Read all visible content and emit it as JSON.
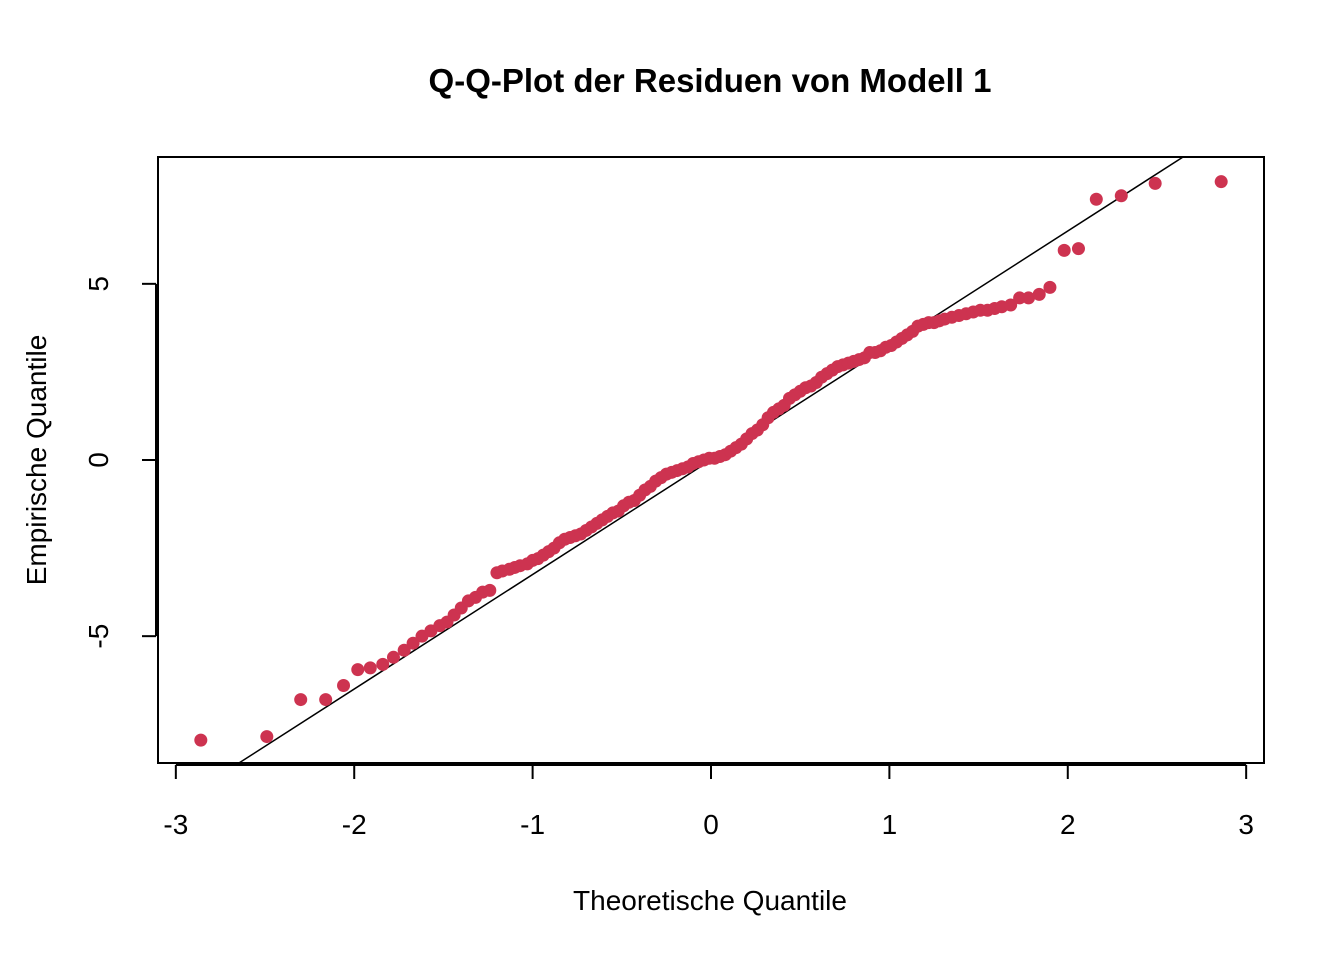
{
  "chart_data": {
    "type": "scatter",
    "title": "Q-Q-Plot der Residuen von Modell 1",
    "xlabel": "Theoretische Quantile",
    "ylabel": "Empirische Quantile",
    "xlim": [
      -3.1,
      3.1
    ],
    "ylim": [
      -8.6,
      8.6
    ],
    "x_ticks": [
      -3,
      -2,
      -1,
      0,
      1,
      2,
      3
    ],
    "x_tick_labels": [
      "-3",
      "-2",
      "-1",
      "0",
      "1",
      "2",
      "3"
    ],
    "y_ticks": [
      -5,
      0,
      5
    ],
    "y_tick_labels": [
      "-5",
      "0",
      "5"
    ],
    "grid": false,
    "point_color": "#cd3350",
    "line_color": "#000000",
    "reference_line": {
      "intercept": 0.0,
      "slope": 3.25
    },
    "series": [
      {
        "x": [
          -2.86,
          -2.49,
          -2.3,
          -2.16,
          -2.06,
          -1.98,
          -1.91,
          -1.84,
          -1.78,
          -1.72,
          -1.67,
          -1.62,
          -1.57,
          -1.52,
          -1.48,
          -1.44,
          -1.4,
          -1.36,
          -1.32,
          -1.28,
          -1.24,
          -1.2,
          -1.17,
          -1.13,
          -1.1,
          -1.07,
          -1.03,
          -1.0,
          -0.97,
          -0.94,
          -0.91,
          -0.88,
          -0.85,
          -0.82,
          -0.79,
          -0.76,
          -0.73,
          -0.7,
          -0.67,
          -0.64,
          -0.61,
          -0.58,
          -0.55,
          -0.52,
          -0.49,
          -0.46,
          -0.43,
          -0.4,
          -0.37,
          -0.34,
          -0.31,
          -0.28,
          -0.25,
          -0.22,
          -0.19,
          -0.16,
          -0.13,
          -0.1,
          -0.07,
          -0.04,
          -0.01,
          0.02,
          0.05,
          0.08,
          0.11,
          0.14,
          0.17,
          0.2,
          0.23,
          0.26,
          0.29,
          0.32,
          0.35,
          0.38,
          0.41,
          0.44,
          0.47,
          0.5,
          0.53,
          0.56,
          0.59,
          0.62,
          0.65,
          0.68,
          0.71,
          0.74,
          0.77,
          0.8,
          0.83,
          0.86,
          0.89,
          0.92,
          0.95,
          0.98,
          1.01,
          1.04,
          1.07,
          1.1,
          1.13,
          1.16,
          1.19,
          1.22,
          1.25,
          1.28,
          1.31,
          1.35,
          1.39,
          1.43,
          1.47,
          1.51,
          1.55,
          1.59,
          1.63,
          1.68,
          1.73,
          1.78,
          1.84,
          1.9,
          1.98,
          2.06,
          2.16,
          2.3,
          2.49,
          2.86
        ],
        "y": [
          -7.95,
          -7.85,
          -6.8,
          -6.8,
          -6.4,
          -5.95,
          -5.9,
          -5.8,
          -5.6,
          -5.4,
          -5.2,
          -5.0,
          -4.85,
          -4.7,
          -4.6,
          -4.4,
          -4.2,
          -4.0,
          -3.9,
          -3.75,
          -3.7,
          -3.2,
          -3.15,
          -3.1,
          -3.05,
          -3.0,
          -2.95,
          -2.85,
          -2.8,
          -2.7,
          -2.6,
          -2.5,
          -2.35,
          -2.25,
          -2.2,
          -2.15,
          -2.1,
          -2.0,
          -1.9,
          -1.8,
          -1.7,
          -1.6,
          -1.5,
          -1.45,
          -1.3,
          -1.2,
          -1.15,
          -1.0,
          -0.85,
          -0.75,
          -0.6,
          -0.5,
          -0.4,
          -0.35,
          -0.3,
          -0.25,
          -0.2,
          -0.1,
          -0.05,
          0.0,
          0.05,
          0.05,
          0.1,
          0.15,
          0.25,
          0.35,
          0.45,
          0.6,
          0.75,
          0.85,
          1.0,
          1.2,
          1.35,
          1.45,
          1.55,
          1.75,
          1.85,
          1.95,
          2.05,
          2.1,
          2.2,
          2.35,
          2.45,
          2.55,
          2.65,
          2.7,
          2.75,
          2.8,
          2.85,
          2.9,
          3.05,
          3.05,
          3.1,
          3.2,
          3.25,
          3.35,
          3.45,
          3.55,
          3.65,
          3.8,
          3.85,
          3.9,
          3.9,
          3.95,
          4.0,
          4.05,
          4.1,
          4.15,
          4.2,
          4.25,
          4.25,
          4.3,
          4.35,
          4.4,
          4.6,
          4.6,
          4.7,
          4.9,
          5.95,
          6.0,
          7.4,
          7.5,
          7.85,
          7.9
        ]
      }
    ]
  }
}
